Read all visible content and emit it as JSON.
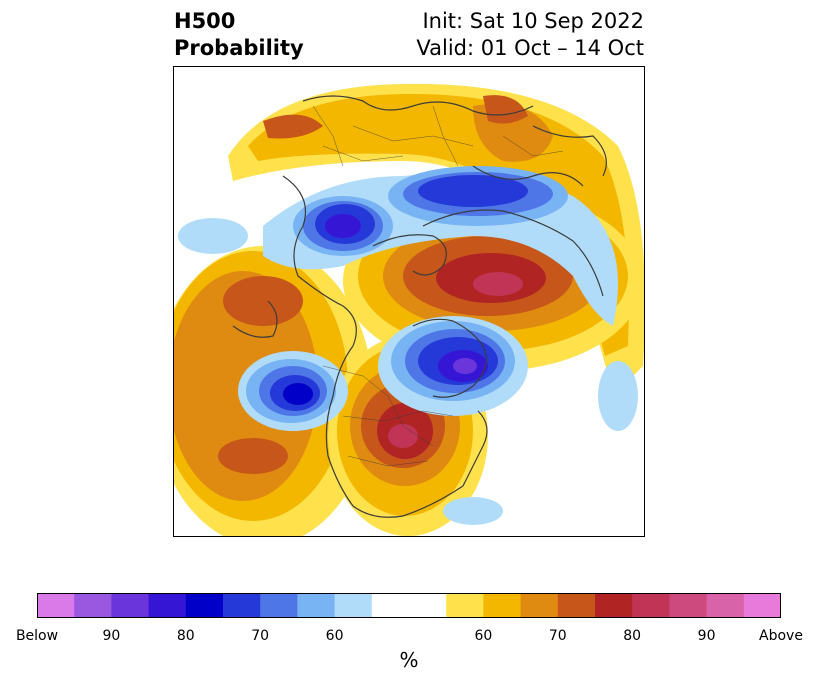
{
  "title": {
    "left_line1": "H500",
    "left_line2": "Probability",
    "init": "Init: Sat 10 Sep 2022",
    "valid": "Valid: 01 Oct – 14 Oct"
  },
  "colorbar": {
    "unit": "%",
    "below_label": "Below",
    "above_label": "Above",
    "below_colors": [
      "#d97ae8",
      "#9a58e0",
      "#6a36dc",
      "#3516d4",
      "#0000c8",
      "#2538d8",
      "#4f76e6",
      "#78b3f4",
      "#b0dcfa"
    ],
    "neutral_color": "#ffffff",
    "above_colors": [
      "#ffe14c",
      "#f3b700",
      "#df8a10",
      "#c6561a",
      "#b02424",
      "#c23456",
      "#cc4a7e",
      "#d963a8",
      "#e87adc"
    ],
    "below_ticks": [
      "90",
      "80",
      "70",
      "60"
    ],
    "above_ticks": [
      "60",
      "70",
      "80",
      "90"
    ]
  },
  "map": {
    "coastline_color": "#3c3c3c",
    "anomalies": [
      {
        "sign": "above",
        "peak": "80"
      },
      {
        "sign": "above",
        "peak": "80"
      },
      {
        "sign": "below",
        "peak": "80"
      },
      {
        "sign": "below",
        "peak": "80"
      },
      {
        "sign": "below",
        "peak": "80"
      },
      {
        "sign": "above",
        "peak": "70"
      },
      {
        "sign": "above",
        "peak": "70"
      }
    ]
  }
}
